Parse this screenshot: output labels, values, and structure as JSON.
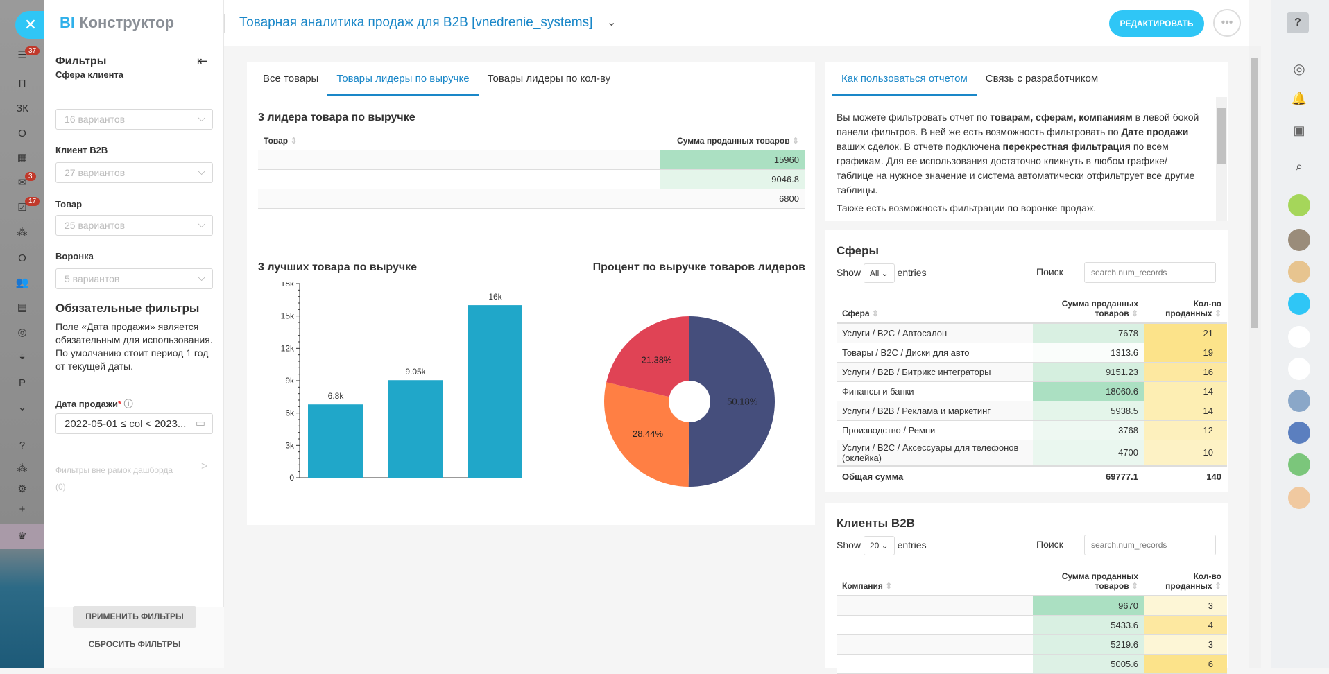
{
  "app_bar": {
    "badges": {
      "filter": "37",
      "mail": "3",
      "tasks": "17"
    },
    "letters": [
      "П",
      "ЗК",
      "О",
      "О",
      "Р"
    ]
  },
  "filters": {
    "logo_bi": "BI",
    "logo_text": "Конструктор",
    "title": "Фильтры",
    "fields": [
      {
        "label": "Сфера клиента",
        "value": "16 вариантов"
      },
      {
        "label": "Клиент B2B",
        "value": "27 вариантов"
      },
      {
        "label": "Товар",
        "value": "25 вариантов"
      },
      {
        "label": "Воронка",
        "value": "5 вариантов"
      }
    ],
    "required_title": "Обязательные фильтры",
    "required_text": "Поле «Дата продажи» является обязательным для использования. По умолчанию стоит период 1 год от текущей даты.",
    "date_label": "Дата продажи",
    "date_required_mark": "*",
    "date_value": "2022-05-01 ≤ col < 2023...",
    "outside_label": "Фильтры вне рамок дашборда",
    "outside_count": "(0)",
    "apply": "ПРИМЕНИТЬ ФИЛЬТРЫ",
    "reset": "СБРОСИТЬ ФИЛЬТРЫ"
  },
  "header": {
    "title": "Товарная аналитика продаж для B2B [vnedrenie_systems]",
    "edit": "РЕДАКТИРОВАТЬ",
    "more": "•••"
  },
  "left_card": {
    "tabs": [
      "Все товары",
      "Товары лидеры по выручке",
      "Товары лидеры по кол-ву"
    ],
    "active_tab": 1,
    "leaders": {
      "title": "3 лидера товара по выручке",
      "col_product": "Товар",
      "col_sum": "Сумма проданных товаров",
      "rows": [
        {
          "product": "",
          "sum": "15960"
        },
        {
          "product": "",
          "sum": "9046.8"
        },
        {
          "product": "",
          "sum": "6800"
        }
      ]
    }
  },
  "chart_data": [
    {
      "type": "bar",
      "title": "3 лучших товара по выручке",
      "categories": [
        "",
        "",
        ""
      ],
      "values": [
        6800,
        9050,
        16000
      ],
      "data_labels": [
        "6.8k",
        "9.05k",
        "16k"
      ],
      "ylim": [
        0,
        18000
      ],
      "yticks": [
        "0",
        "3k",
        "6k",
        "9k",
        "12k",
        "15k",
        "18k"
      ],
      "color": "#20a7c9",
      "grid": false
    },
    {
      "type": "pie",
      "title": "Процент по выручке товаров лидеров",
      "values": [
        50.18,
        28.44,
        21.38
      ],
      "labels": [
        "50.18%",
        "28.44%",
        "21.38%"
      ],
      "colors": [
        "#454e7c",
        "#ff7f44",
        "#e04355"
      ],
      "donut": true
    }
  ],
  "info_card": {
    "tabs": [
      "Как пользоваться отчетом",
      "Связь с разработчиком"
    ],
    "text_parts": [
      [
        "Вы можете фильтровать отчет по ",
        false
      ],
      [
        "товарам, сферам, компаниям",
        true
      ],
      [
        " в левой бокой панели фильтров. В ней же есть возможность фильтровать по ",
        false
      ],
      [
        "Дате продажи",
        true
      ],
      [
        " ваших сделок. В отчете подключена ",
        false
      ],
      [
        "перекрестная фильтрация",
        true
      ],
      [
        " по всем графикам. Для ее использования достаточно кликнуть в любом графике/таблице на нужное значение и система автоматически отфильтрует все другие таблицы.",
        false
      ]
    ],
    "text_last": "Также есть возможность фильтрации по воронке продаж."
  },
  "spheres": {
    "title": "Сферы",
    "show": "Show",
    "show_value": "All",
    "entries": "entries",
    "search_label": "Поиск",
    "search_placeholder": "search.num_records",
    "cols": [
      "Сфера",
      "Сумма проданных товаров",
      "Кол-во проданных"
    ],
    "rows": [
      [
        "Услуги / B2C / Автосалон",
        "7678",
        "21"
      ],
      [
        "Товары / B2C / Диски для авто",
        "1313.6",
        "19"
      ],
      [
        "Услуги / B2B / Битрикс интеграторы",
        "9151.23",
        "16"
      ],
      [
        "Финансы и банки",
        "18060.6",
        "14"
      ],
      [
        "Услуги / B2B / Реклама и маркетинг",
        "5938.5",
        "14"
      ],
      [
        "Производство / Ремни",
        "3768",
        "12"
      ],
      [
        "Услуги / B2C / Аксессуары для телефонов (оклейка)",
        "4700",
        "10"
      ]
    ],
    "total_label": "Общая сумма",
    "total_sum": "69777.1",
    "total_qty": "140"
  },
  "clients": {
    "title": "Клиенты B2B",
    "show": "Show",
    "show_value": "20",
    "entries": "entries",
    "search_label": "Поиск",
    "search_placeholder": "search.num_records",
    "cols": [
      "Компания",
      "Сумма проданных товаров",
      "Кол-во проданных"
    ],
    "rows": [
      [
        "",
        "9670",
        "3"
      ],
      [
        "",
        "5433.6",
        "4"
      ],
      [
        "",
        "5219.6",
        "3"
      ],
      [
        "",
        "5005.6",
        "6"
      ]
    ]
  }
}
